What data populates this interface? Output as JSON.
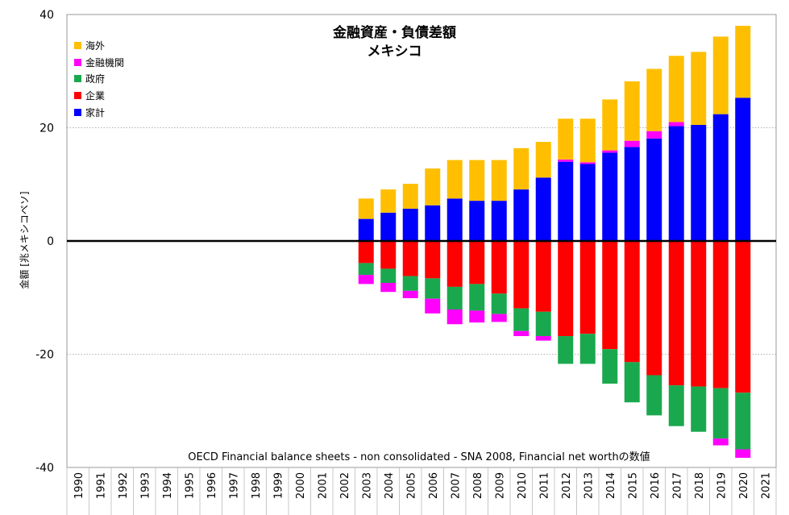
{
  "chart_data": {
    "type": "bar",
    "stacked": true,
    "title": "金融資産・負債差額",
    "subtitle": "メキシコ",
    "source_note": "OECD Financial balance sheets - non consolidated - SNA 2008, Financial net worthの数値",
    "ylabel": "金額 [兆メキシコペソ]",
    "xlabel": "",
    "ylim": [
      -40,
      40
    ],
    "yticks": [
      -40,
      -20,
      0,
      20,
      40
    ],
    "grid": true,
    "legend_position": "top-left",
    "categories": [
      "1990",
      "1991",
      "1992",
      "1993",
      "1994",
      "1995",
      "1996",
      "1997",
      "1998",
      "1999",
      "2000",
      "2001",
      "2002",
      "2003",
      "2004",
      "2005",
      "2006",
      "2007",
      "2008",
      "2009",
      "2010",
      "2011",
      "2012",
      "2013",
      "2014",
      "2015",
      "2016",
      "2017",
      "2018",
      "2019",
      "2020",
      "2021"
    ],
    "series": [
      {
        "name": "家計",
        "color": "#0000ff",
        "values": [
          null,
          null,
          null,
          null,
          null,
          null,
          null,
          null,
          null,
          null,
          null,
          null,
          null,
          3.9,
          5.0,
          5.7,
          6.3,
          7.5,
          7.1,
          7.1,
          9.1,
          11.2,
          14.0,
          13.6,
          15.6,
          16.6,
          18.1,
          20.3,
          20.5,
          22.4,
          25.3,
          null
        ]
      },
      {
        "name": "企業",
        "color": "#ff0000",
        "values": [
          null,
          null,
          null,
          null,
          null,
          null,
          null,
          null,
          null,
          null,
          null,
          null,
          null,
          -3.9,
          -4.9,
          -6.2,
          -6.6,
          -8.1,
          -7.6,
          -9.3,
          -11.9,
          -12.5,
          -16.8,
          -16.4,
          -19.1,
          -21.4,
          -23.7,
          -25.5,
          -25.7,
          -26.0,
          -26.8,
          null
        ]
      },
      {
        "name": "政府",
        "color": "#1aa84e",
        "values": [
          null,
          null,
          null,
          null,
          null,
          null,
          null,
          null,
          null,
          null,
          null,
          null,
          null,
          -2.1,
          -2.5,
          -2.6,
          -3.6,
          -4.0,
          -4.7,
          -3.6,
          -4.0,
          -4.3,
          -4.9,
          -5.3,
          -6.1,
          -7.1,
          -7.1,
          -7.2,
          -8.0,
          -8.9,
          -10.0,
          null
        ]
      },
      {
        "name": "金融機関",
        "color": "#ff00ff",
        "values": [
          null,
          null,
          null,
          null,
          null,
          null,
          null,
          null,
          null,
          null,
          null,
          null,
          null,
          -1.6,
          -1.6,
          -1.3,
          -2.6,
          -2.6,
          -2.1,
          -1.4,
          -0.9,
          -0.8,
          0.4,
          0.3,
          0.4,
          1.1,
          1.3,
          0.7,
          0.0,
          -1.2,
          -1.5,
          null
        ]
      },
      {
        "name": "海外",
        "color": "#ffbf00",
        "values": [
          null,
          null,
          null,
          null,
          null,
          null,
          null,
          null,
          null,
          null,
          null,
          null,
          null,
          3.6,
          4.1,
          4.4,
          6.5,
          6.8,
          7.2,
          7.2,
          7.3,
          6.3,
          7.2,
          7.7,
          9.0,
          10.5,
          11.0,
          11.7,
          12.9,
          13.7,
          12.7,
          null
        ]
      }
    ],
    "legend_order": [
      "海外",
      "金融機関",
      "政府",
      "企業",
      "家計"
    ]
  }
}
